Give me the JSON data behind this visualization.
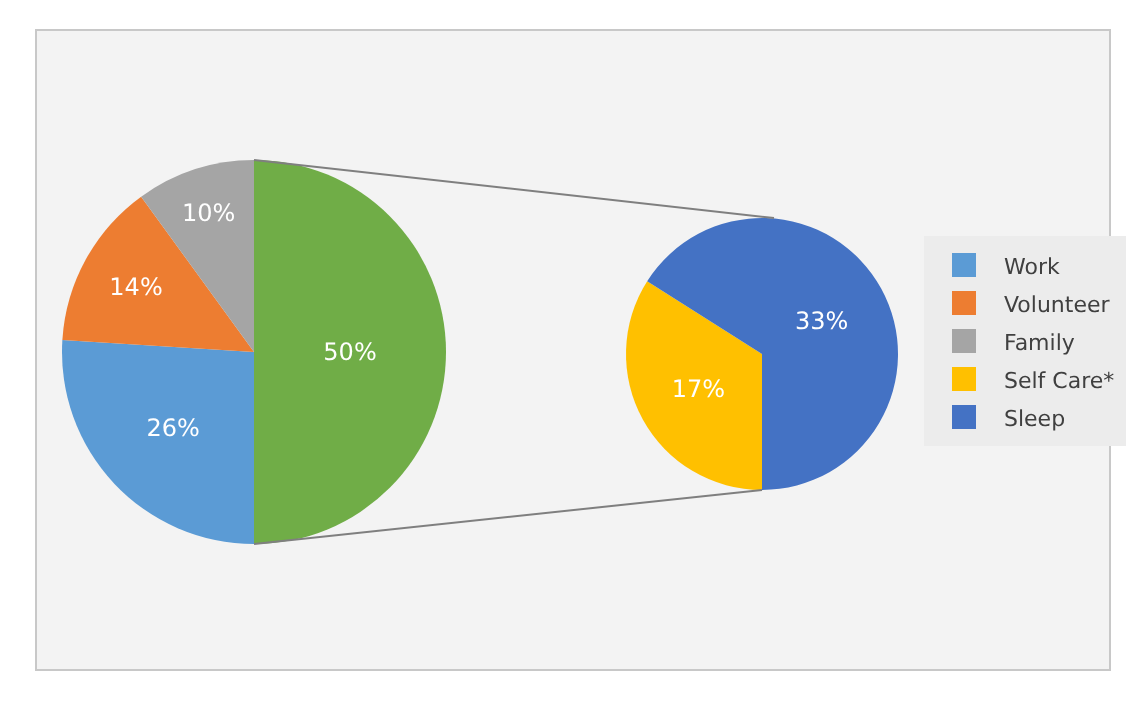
{
  "chart_data": [
    {
      "type": "pie",
      "categories": [
        null,
        "Work",
        "Volunteer",
        "Family"
      ],
      "values": [
        50,
        26,
        14,
        10
      ],
      "colors": [
        "#70ad47",
        "#5b9bd5",
        "#ed7d31",
        "#a5a5a5"
      ],
      "value_labels": [
        "50%",
        "26%",
        "14%",
        "10%"
      ],
      "legend": "right"
    },
    {
      "type": "pie",
      "categories": [
        "Self Care*",
        "Sleep"
      ],
      "values": [
        17,
        33
      ],
      "colors": [
        "#ffc000",
        "#4472c4"
      ],
      "value_labels": [
        "17%",
        "33%"
      ],
      "legend": "right"
    }
  ]
}
